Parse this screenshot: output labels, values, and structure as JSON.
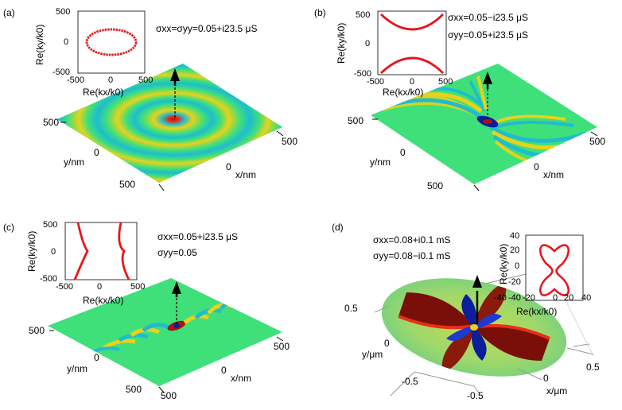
{
  "panels": {
    "a": {
      "label": "(a)",
      "cond": "σxx=σyy=0.05+i23.5 μS",
      "inset": {
        "xlabel": "Re(kx/k0)",
        "ylabel": "Re(ky/k0)",
        "xticks": [
          "-500",
          "0",
          "500"
        ],
        "yticks": [
          "500",
          "0",
          "-500"
        ]
      },
      "axes": {
        "y_label": "y/nm",
        "x_label": "x/nm",
        "y_ticks": [
          "500",
          "0",
          "500"
        ],
        "x_ticks": [
          "500",
          "0",
          "500"
        ]
      }
    },
    "b": {
      "label": "(b)",
      "cond1": "σxx=0.05−i23.5 μS",
      "cond2": "σyy=0.05+i23.5 μS",
      "inset": {
        "xlabel": "Re(kx/k0)",
        "ylabel": "Re(ky/k0)",
        "xticks": [
          "-500",
          "0",
          "500"
        ],
        "yticks": [
          "500",
          "0",
          "-500"
        ]
      },
      "axes": {
        "y_label": "y/nm",
        "x_label": "x/nm",
        "y_ticks": [
          "500",
          "0",
          "500"
        ],
        "x_ticks": [
          "500",
          "0",
          "500"
        ]
      }
    },
    "c": {
      "label": "(c)",
      "cond1": "σxx=0.05+i23.5 μS",
      "cond2": "σyy=0.05",
      "inset": {
        "xlabel": "Re(kx/k0)",
        "ylabel": "Re(ky/k0)",
        "xticks": [
          "-500",
          "0",
          "500"
        ],
        "yticks": [
          "500",
          "0",
          "-500"
        ]
      },
      "axes": {
        "y_label": "y/nm",
        "x_label": "x/nm",
        "y_ticks": [
          "500",
          "0",
          "500"
        ],
        "x_ticks": [
          "500",
          "0",
          "500"
        ]
      }
    },
    "d": {
      "label": "(d)",
      "cond1": "σxx=0.08+i0.1 mS",
      "cond2": "σyy=0.08−i0.1 mS",
      "inset": {
        "xlabel": "Re(kx/k0)",
        "ylabel": "Re(ky/k0)",
        "xticks": [
          "-40",
          "-20",
          "0",
          "20",
          "40"
        ],
        "yticks": [
          "40",
          "20",
          "0",
          "-20",
          "-40"
        ]
      },
      "axes": {
        "y_label": "y/μm",
        "x_label": "x/μm",
        "y_ticks": [
          "0.5",
          "0",
          "-0.5"
        ],
        "x_ticks": [
          "-0.5",
          "0",
          "0.5"
        ]
      }
    }
  },
  "colors": {
    "curve": "#e8141a",
    "field_bg": "#3fe07a",
    "pos": "#e8d21a",
    "neg": "#1fbcd0",
    "deep_pos": "#7a0f0a",
    "deep_neg": "#0b1f9a"
  }
}
